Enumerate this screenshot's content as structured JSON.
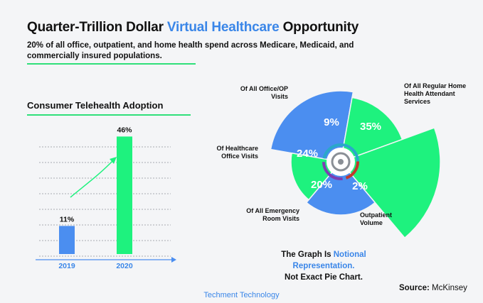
{
  "header": {
    "title_prefix": "Quarter-Trillion Dollar",
    "title_highlight": "Virtual Healthcare",
    "title_suffix": "Opportunity",
    "subtitle": "20% of all office, outpatient, and home health spend across Medicare, Medicaid, and commercially insured populations."
  },
  "colors": {
    "blue": "#4b8ef0",
    "green": "#1ef27e",
    "accent": "#3a86e8",
    "rule": "#2fe07a"
  },
  "chart_data": [
    {
      "type": "bar",
      "title": "Consumer Telehealth Adoption",
      "categories": [
        "2019",
        "2020"
      ],
      "values": [
        11,
        46
      ],
      "labels": [
        "11%",
        "46%"
      ],
      "ylim": [
        0,
        50
      ],
      "colors": [
        "#4b8ef0",
        "#1ef27e"
      ]
    },
    {
      "type": "pie",
      "style": "polar-area",
      "slices": [
        {
          "label": "Of All Office/OP Visits",
          "value": 9,
          "display": "9%",
          "color": "#4b8ef0"
        },
        {
          "label": "Of All Regular Home Health Attendant Services",
          "value": 35,
          "display": "35%",
          "color": "#1ef27e"
        },
        {
          "label": "Outpatient Volume",
          "value": 2,
          "display": "2%",
          "color": "#1ef27e"
        },
        {
          "label": "Of All Emergency Room Visits",
          "value": 20,
          "display": "20%",
          "color": "#4b8ef0"
        },
        {
          "label": "Of Healthcare Office Visits",
          "value": 24,
          "display": "24%",
          "color": "#1ef27e"
        }
      ]
    }
  ],
  "note": {
    "prefix": "The Graph Is",
    "highlight": "Notional Representation.",
    "line2": "Not Exact Pie Chart."
  },
  "source": {
    "label": "Source:",
    "value": "McKinsey"
  },
  "footer": "Techment Technology"
}
